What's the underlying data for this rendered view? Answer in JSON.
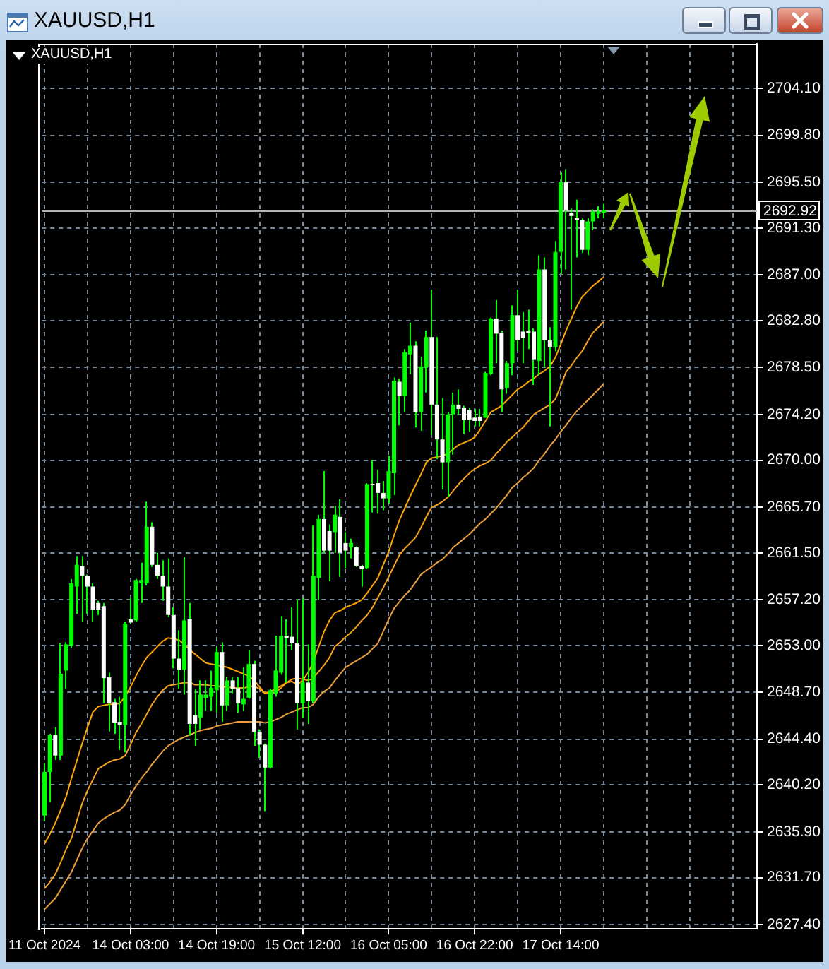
{
  "chart_data": {
    "type": "candlestick",
    "title": "XAUUSD,H1",
    "subtitle": "XAUUSD,H1",
    "categories": [
      "11 Oct 2024",
      null,
      null,
      null,
      null,
      null,
      null,
      null,
      null,
      null,
      null,
      null,
      null,
      null,
      null,
      null,
      "14 Oct 03:00",
      null,
      null,
      null,
      null,
      null,
      null,
      null,
      null,
      null,
      null,
      null,
      null,
      null,
      null,
      null,
      "14 Oct 19:00",
      null,
      null,
      null,
      null,
      null,
      null,
      null,
      null,
      null,
      null,
      null,
      null,
      null,
      null,
      null,
      "15 Oct 12:00",
      null,
      null,
      null,
      null,
      null,
      null,
      null,
      null,
      null,
      null,
      null,
      null,
      null,
      null,
      null,
      "16 Oct 05:00",
      null,
      null,
      null,
      null,
      null,
      null,
      null,
      null,
      null,
      null,
      null,
      null,
      null,
      null,
      null,
      "16 Oct 22:00",
      null,
      null,
      null,
      null,
      null,
      null,
      null,
      null,
      null,
      null,
      null,
      null,
      null,
      null,
      null,
      "17 Oct 14:00",
      null,
      null,
      null,
      null,
      null,
      null,
      null,
      null,
      null,
      null,
      null,
      null,
      null,
      null,
      null,
      null,
      null,
      null,
      null,
      null,
      null,
      null,
      null,
      null,
      null,
      null,
      null,
      null,
      null,
      null,
      null,
      null,
      null,
      null,
      null,
      null
    ],
    "ohlc": [
      [
        2637.4,
        2642.2,
        2636.9,
        2641.4
      ],
      [
        2641.4,
        2644.9,
        2638.6,
        2644.8
      ],
      [
        2644.8,
        2645.5,
        2642.5,
        2642.9
      ],
      [
        2642.9,
        2653.2,
        2642.5,
        2650.4
      ],
      [
        2650.7,
        2653.3,
        2649.0,
        2653.1
      ],
      [
        2653.0,
        2659.1,
        2652.8,
        2658.7
      ],
      [
        2658.4,
        2661.2,
        2655.9,
        2660.4
      ],
      [
        2660.3,
        2661.2,
        2655.2,
        2659.4
      ],
      [
        2659.4,
        2659.5,
        2655.9,
        2658.4
      ],
      [
        2658.4,
        2658.7,
        2655.2,
        2656.3
      ],
      [
        2656.9,
        2657.1,
        2655.8,
        2656.3
      ],
      [
        2656.6,
        2656.9,
        2647.7,
        2650.0
      ],
      [
        2650.1,
        2650.5,
        2645.1,
        2647.7
      ],
      [
        2647.8,
        2648.1,
        2644.9,
        2645.9
      ],
      [
        2646.0,
        2648.3,
        2643.4,
        2645.7
      ],
      [
        2645.7,
        2655.2,
        2643.2,
        2655.0
      ],
      [
        2655.4,
        2657.4,
        2655.0,
        2655.1
      ],
      [
        2655.3,
        2659.1,
        2655.2,
        2659.0
      ],
      [
        2658.7,
        2660.6,
        2656.9,
        2659.0
      ],
      [
        2658.7,
        2666.2,
        2658.5,
        2663.9
      ],
      [
        2663.9,
        2664.3,
        2660.2,
        2660.4
      ],
      [
        2660.4,
        2661.5,
        2659.1,
        2659.4
      ],
      [
        2659.4,
        2660.8,
        2657.1,
        2658.4
      ],
      [
        2658.4,
        2661.0,
        2655.6,
        2655.8
      ],
      [
        2655.8,
        2656.5,
        2650.9,
        2651.8
      ],
      [
        2651.8,
        2654.4,
        2649.0,
        2650.8
      ],
      [
        2650.8,
        2661.1,
        2648.5,
        2655.3
      ],
      [
        2655.4,
        2656.9,
        2644.7,
        2645.8
      ],
      [
        2646.6,
        2649.0,
        2643.8,
        2645.8
      ],
      [
        2646.4,
        2649.8,
        2645.3,
        2648.5
      ],
      [
        2648.2,
        2649.8,
        2647.0,
        2648.5
      ],
      [
        2648.3,
        2650.7,
        2647.0,
        2649.1
      ],
      [
        2648.9,
        2652.9,
        2646.8,
        2652.4
      ],
      [
        2652.4,
        2653.3,
        2646.0,
        2647.5
      ],
      [
        2647.5,
        2650.1,
        2647.0,
        2649.8
      ],
      [
        2649.8,
        2650.1,
        2648.6,
        2649.0
      ],
      [
        2649.1,
        2650.1,
        2646.8,
        2647.7
      ],
      [
        2647.6,
        2651.0,
        2647.0,
        2648.1
      ],
      [
        2648.2,
        2652.6,
        2648.1,
        2651.3
      ],
      [
        2651.3,
        2651.6,
        2643.8,
        2645.1
      ],
      [
        2645.1,
        2645.3,
        2642.7,
        2643.9
      ],
      [
        2643.9,
        2644.0,
        2637.8,
        2641.8
      ],
      [
        2641.8,
        2649.0,
        2641.7,
        2648.9
      ],
      [
        2648.6,
        2653.9,
        2648.3,
        2650.7
      ],
      [
        2650.5,
        2655.7,
        2650.3,
        2653.9
      ],
      [
        2653.9,
        2655.4,
        2649.6,
        2653.7
      ],
      [
        2653.8,
        2656.5,
        2652.6,
        2653.2
      ],
      [
        2653.2,
        2657.2,
        2645.3,
        2647.7
      ],
      [
        2647.7,
        2657.4,
        2646.4,
        2649.6
      ],
      [
        2649.6,
        2653.1,
        2645.8,
        2647.9
      ],
      [
        2647.9,
        2664.0,
        2647.7,
        2659.4
      ],
      [
        2659.2,
        2665.0,
        2657.2,
        2664.6
      ],
      [
        2664.6,
        2669.0,
        2661.5,
        2661.7
      ],
      [
        2663.5,
        2664.1,
        2658.9,
        2661.7
      ],
      [
        2663.4,
        2665.8,
        2661.5,
        2665.0
      ],
      [
        2664.8,
        2666.4,
        2659.3,
        2661.5
      ],
      [
        2662.4,
        2663.4,
        2660.1,
        2661.7
      ],
      [
        2662.0,
        2662.8,
        2661.0,
        2662.4
      ],
      [
        2662.0,
        2662.1,
        2660.2,
        2660.3
      ],
      [
        2660.3,
        2660.4,
        2658.4,
        2660.0
      ],
      [
        2660.1,
        2667.9,
        2660.0,
        2667.8
      ],
      [
        2667.8,
        2670.0,
        2665.2,
        2667.7
      ],
      [
        2667.9,
        2669.1,
        2665.1,
        2667.0
      ],
      [
        2667.0,
        2668.1,
        2665.4,
        2666.5
      ],
      [
        2666.5,
        2670.4,
        2666.0,
        2669.0
      ],
      [
        2668.8,
        2677.6,
        2666.8,
        2677.3
      ],
      [
        2677.2,
        2677.5,
        2673.2,
        2675.9
      ],
      [
        2675.9,
        2680.2,
        2674.4,
        2679.9
      ],
      [
        2679.7,
        2682.6,
        2677.9,
        2680.5
      ],
      [
        2680.5,
        2680.9,
        2673.0,
        2674.4
      ],
      [
        2674.4,
        2679.5,
        2672.7,
        2678.6
      ],
      [
        2678.5,
        2681.9,
        2676.2,
        2681.3
      ],
      [
        2681.3,
        2685.6,
        2672.3,
        2675.1
      ],
      [
        2675.1,
        2681.3,
        2670.1,
        2671.9
      ],
      [
        2671.9,
        2675.7,
        2667.3,
        2669.8
      ],
      [
        2669.8,
        2674.4,
        2666.6,
        2674.2
      ],
      [
        2674.2,
        2676.2,
        2670.5,
        2675.1
      ],
      [
        2675.1,
        2676.5,
        2674.2,
        2674.7
      ],
      [
        2674.8,
        2675.0,
        2672.4,
        2673.7
      ],
      [
        2674.6,
        2674.8,
        2672.6,
        2673.7
      ],
      [
        2673.9,
        2674.7,
        2673.1,
        2673.6
      ],
      [
        2674.0,
        2674.7,
        2673.1,
        2673.6
      ],
      [
        2673.9,
        2678.1,
        2673.9,
        2678.0
      ],
      [
        2677.9,
        2683.1,
        2677.8,
        2683.0
      ],
      [
        2683.0,
        2684.7,
        2678.9,
        2681.6
      ],
      [
        2681.7,
        2681.9,
        2674.4,
        2676.5
      ],
      [
        2676.6,
        2679.1,
        2676.1,
        2678.9
      ],
      [
        2678.9,
        2684.2,
        2677.8,
        2683.3
      ],
      [
        2683.3,
        2685.6,
        2680.0,
        2681.0
      ],
      [
        2681.8,
        2683.6,
        2678.9,
        2681.2
      ],
      [
        2681.8,
        2683.8,
        2680.2,
        2681.7
      ],
      [
        2681.8,
        2682.1,
        2676.9,
        2679.2
      ],
      [
        2679.1,
        2688.8,
        2677.8,
        2687.5
      ],
      [
        2687.5,
        2688.6,
        2678.5,
        2681.0
      ],
      [
        2681.0,
        2682.2,
        2673.1,
        2680.4
      ],
      [
        2680.4,
        2690.1,
        2680.0,
        2689.1
      ],
      [
        2689.1,
        2696.4,
        2687.1,
        2695.5
      ],
      [
        2695.5,
        2696.7,
        2687.5,
        2692.9
      ],
      [
        2692.7,
        2693.1,
        2683.8,
        2692.4
      ],
      [
        2692.2,
        2693.9,
        2688.6,
        2692.0
      ],
      [
        2692.0,
        2692.2,
        2689.0,
        2689.3
      ],
      [
        2689.3,
        2692.2,
        2688.8,
        2691.9
      ],
      [
        2691.9,
        2693.0,
        2691.1,
        2692.8
      ],
      [
        2692.6,
        2693.3,
        2692.2,
        2692.8
      ],
      [
        2692.7,
        2693.5,
        2692.2,
        2692.92
      ],
      null,
      null,
      null,
      null,
      null,
      null,
      null,
      null,
      null,
      null,
      null,
      null,
      null,
      null,
      null,
      null,
      null,
      null,
      null,
      null,
      null,
      null,
      null,
      null,
      null,
      null,
      null,
      null
    ],
    "color": "#00ff00",
    "colors": [
      "#00ff00",
      "#00ff00",
      "#ffffff",
      "#00ff00",
      "#00ff00",
      "#00ff00",
      "#00ff00",
      "#ffffff",
      "#ffffff",
      "#ffffff",
      "#ffffff",
      "#ffffff",
      "#ffffff",
      "#ffffff",
      "#ffffff",
      "#00ff00",
      "#ffffff",
      "#00ff00",
      "#00ff00",
      "#00ff00",
      "#ffffff",
      "#ffffff",
      "#ffffff",
      "#ffffff",
      "#ffffff",
      "#ffffff",
      "#00ff00",
      "#ffffff",
      "#ffffff",
      "#00ff00",
      "#00ff00",
      "#00ff00",
      "#00ff00",
      "#ffffff",
      "#00ff00",
      "#ffffff",
      "#ffffff",
      "#00ff00",
      "#00ff00",
      "#ffffff",
      "#ffffff",
      "#ffffff",
      "#00ff00",
      "#00ff00",
      "#00ff00",
      "#ffffff",
      "#ffffff",
      "#ffffff",
      "#00ff00",
      "#ffffff",
      "#00ff00",
      "#00ff00",
      "#ffffff",
      "#ffffff",
      "#00ff00",
      "#ffffff",
      "#ffffff",
      "#00ff00",
      "#ffffff",
      "#ffffff",
      "#00ff00",
      "#ffffff",
      "#ffffff",
      "#ffffff",
      "#00ff00",
      "#00ff00",
      "#ffffff",
      "#00ff00",
      "#00ff00",
      "#ffffff",
      "#00ff00",
      "#00ff00",
      "#ffffff",
      "#ffffff",
      "#ffffff",
      "#00ff00",
      "#00ff00",
      "#ffffff",
      "#ffffff",
      "#ffffff",
      "#ffffff",
      "#ffffff",
      "#00ff00",
      "#00ff00",
      "#ffffff",
      "#ffffff",
      "#00ff00",
      "#00ff00",
      "#ffffff",
      "#ffffff",
      "#ffffff",
      "#ffffff",
      "#00ff00",
      "#ffffff",
      "#ffffff",
      "#00ff00",
      "#00ff00",
      "#ffffff",
      "#ffffff",
      "#ffffff",
      "#ffffff",
      "#00ff00",
      "#00ff00",
      "#00ff00",
      "#00ff00",
      null,
      null,
      null,
      null,
      null,
      null,
      null,
      null,
      null,
      null,
      null,
      null,
      null,
      null,
      null,
      null,
      null,
      null,
      null,
      null,
      null,
      null,
      null,
      null,
      null,
      null,
      null,
      null
    ],
    "series": [
      {
        "type": "line",
        "color": "#ffa500",
        "values": [
          2634.8,
          2635.7,
          2636.7,
          2637.9,
          2639.1,
          2640.8,
          2642.4,
          2644.0,
          2645.5,
          2646.9,
          2647.4,
          2647.5,
          2647.6,
          2647.6,
          2647.7,
          2648.3,
          2649.2,
          2650.2,
          2651.1,
          2651.9,
          2652.4,
          2652.9,
          2653.4,
          2653.7,
          2653.6,
          2653.5,
          2653.1,
          2652.6,
          2652.2,
          2651.8,
          2651.4,
          2651.3,
          2651.2,
          2651.1,
          2651.0,
          2650.8,
          2650.6,
          2650.4,
          2650.2,
          2649.8,
          2649.2,
          2648.6,
          2648.8,
          2649.0,
          2649.3,
          2649.6,
          2649.7,
          2649.4,
          2649.8,
          2650.5,
          2651.5,
          2652.9,
          2654.3,
          2655.3,
          2656.0,
          2656.2,
          2656.5,
          2656.7,
          2656.9,
          2657.2,
          2657.8,
          2658.5,
          2659.2,
          2660.4,
          2661.6,
          2663.1,
          2664.5,
          2665.6,
          2666.7,
          2667.7,
          2668.7,
          2669.8,
          2670.2,
          2670.3,
          2670.4,
          2670.6,
          2671.0,
          2671.4,
          2671.6,
          2671.8,
          2672.1,
          2672.8,
          2673.6,
          2674.4,
          2674.7,
          2675.0,
          2675.5,
          2676.0,
          2676.5,
          2676.8,
          2677.2,
          2677.5,
          2677.9,
          2678.2,
          2678.6,
          2679.4,
          2680.6,
          2681.9,
          2683.0,
          2684.1,
          2685.0,
          2685.5,
          2686.0,
          2686.4,
          2686.8,
          null,
          null,
          null,
          null,
          null,
          null,
          null,
          null,
          null,
          null,
          null,
          null,
          null,
          null,
          null,
          null,
          null,
          null,
          null,
          null,
          null,
          null,
          null,
          null,
          null,
          null,
          null,
          null
        ]
      },
      {
        "type": "line",
        "color": "#f7a21b",
        "values": [
          2630.7,
          2631.3,
          2632.0,
          2633.1,
          2634.3,
          2635.3,
          2636.9,
          2638.5,
          2639.7,
          2640.7,
          2641.7,
          2642.0,
          2642.3,
          2642.5,
          2642.6,
          2642.9,
          2643.9,
          2645.0,
          2645.8,
          2646.7,
          2647.6,
          2648.3,
          2648.9,
          2649.3,
          2649.4,
          2649.5,
          2649.6,
          2649.6,
          2649.4,
          2649.4,
          2649.4,
          2649.3,
          2649.3,
          2649.2,
          2649.2,
          2649.1,
          2649.1,
          2649.1,
          2649.2,
          2649.3,
          2649.0,
          2648.6,
          2648.6,
          2648.7,
          2649.1,
          2649.6,
          2649.9,
          2650.0,
          2649.9,
          2649.8,
          2650.0,
          2650.6,
          2651.2,
          2651.9,
          2652.9,
          2653.3,
          2653.8,
          2654.2,
          2654.7,
          2655.3,
          2655.8,
          2656.5,
          2657.4,
          2658.3,
          2659.3,
          2660.3,
          2661.3,
          2661.9,
          2662.4,
          2662.9,
          2663.8,
          2664.8,
          2665.7,
          2665.9,
          2666.2,
          2666.6,
          2667.2,
          2667.8,
          2668.3,
          2668.8,
          2669.2,
          2669.5,
          2669.7,
          2670.0,
          2670.6,
          2671.1,
          2671.7,
          2672.1,
          2672.6,
          2673.0,
          2673.6,
          2674.2,
          2674.5,
          2674.8,
          2675.1,
          2675.6,
          2676.8,
          2678.1,
          2678.7,
          2679.4,
          2680.0,
          2680.9,
          2681.7,
          2682.2,
          2682.7,
          null,
          null,
          null,
          null,
          null,
          null,
          null,
          null,
          null,
          null,
          null,
          null,
          null,
          null,
          null,
          null,
          null,
          null,
          null,
          null,
          null,
          null,
          null,
          null,
          null,
          null,
          null,
          null
        ]
      },
      {
        "type": "line",
        "color": "#eb9f3c",
        "values": [
          2628.8,
          2629.3,
          2629.8,
          2630.6,
          2631.4,
          2632.2,
          2633.3,
          2634.4,
          2635.3,
          2636.0,
          2636.7,
          2637.1,
          2637.4,
          2637.7,
          2637.9,
          2638.4,
          2639.3,
          2640.1,
          2640.8,
          2641.4,
          2642.1,
          2642.7,
          2643.3,
          2643.8,
          2644.1,
          2644.4,
          2644.6,
          2644.8,
          2645.0,
          2645.2,
          2645.3,
          2645.4,
          2645.6,
          2645.7,
          2645.8,
          2645.9,
          2646.0,
          2646.0,
          2646.0,
          2646.0,
          2646.0,
          2645.9,
          2646.0,
          2646.2,
          2646.4,
          2646.7,
          2646.9,
          2647.1,
          2647.3,
          2647.3,
          2647.6,
          2648.3,
          2648.8,
          2649.1,
          2649.8,
          2650.4,
          2651.0,
          2651.3,
          2651.6,
          2651.9,
          2652.2,
          2652.7,
          2653.2,
          2654.3,
          2655.4,
          2656.4,
          2657.0,
          2657.6,
          2658.1,
          2658.8,
          2659.5,
          2659.9,
          2660.2,
          2660.6,
          2660.9,
          2661.4,
          2662.0,
          2662.4,
          2662.8,
          2663.2,
          2663.7,
          2664.2,
          2664.6,
          2665.1,
          2665.6,
          2666.2,
          2666.8,
          2667.5,
          2667.9,
          2668.4,
          2668.8,
          2669.3,
          2670.0,
          2670.6,
          2671.3,
          2671.9,
          2672.6,
          2673.2,
          2673.9,
          2674.5,
          2675.0,
          2675.5,
          2676.0,
          2676.5,
          2677.0,
          null,
          null,
          null,
          null,
          null,
          null,
          null,
          null,
          null,
          null,
          null,
          null,
          null,
          null,
          null,
          null,
          null,
          null,
          null,
          null,
          null,
          null,
          null,
          null,
          null,
          null,
          null,
          null
        ]
      }
    ],
    "ylim": [
      2627.0,
      2708.2
    ],
    "yticks": [
      {
        "value": 2704.1,
        "label": "2704.10"
      },
      {
        "value": 2699.8,
        "label": "2699.80"
      },
      {
        "value": 2695.5,
        "label": "2695.50"
      },
      {
        "value": 2691.3,
        "label": "2691.30"
      },
      {
        "value": 2687.0,
        "label": "2687.00"
      },
      {
        "value": 2682.8,
        "label": "2682.80"
      },
      {
        "value": 2678.5,
        "label": "2678.50"
      },
      {
        "value": 2674.2,
        "label": "2674.20"
      },
      {
        "value": 2670.0,
        "label": "2670.00"
      },
      {
        "value": 2665.7,
        "label": "2665.70"
      },
      {
        "value": 2661.5,
        "label": "2661.50"
      },
      {
        "value": 2657.2,
        "label": "2657.20"
      },
      {
        "value": 2653.0,
        "label": "2653.00"
      },
      {
        "value": 2648.7,
        "label": "2648.70"
      },
      {
        "value": 2644.4,
        "label": "2644.40"
      },
      {
        "value": 2640.2,
        "label": "2640.20"
      },
      {
        "value": 2635.9,
        "label": "2635.90"
      },
      {
        "value": 2631.7,
        "label": "2631.70"
      },
      {
        "value": 2627.4,
        "label": "2627.40"
      }
    ],
    "grid": true,
    "ref_lines": [
      {
        "axis": "y",
        "value": 2692.92,
        "label": "2692.92",
        "color": "#b4b4b4"
      }
    ]
  }
}
